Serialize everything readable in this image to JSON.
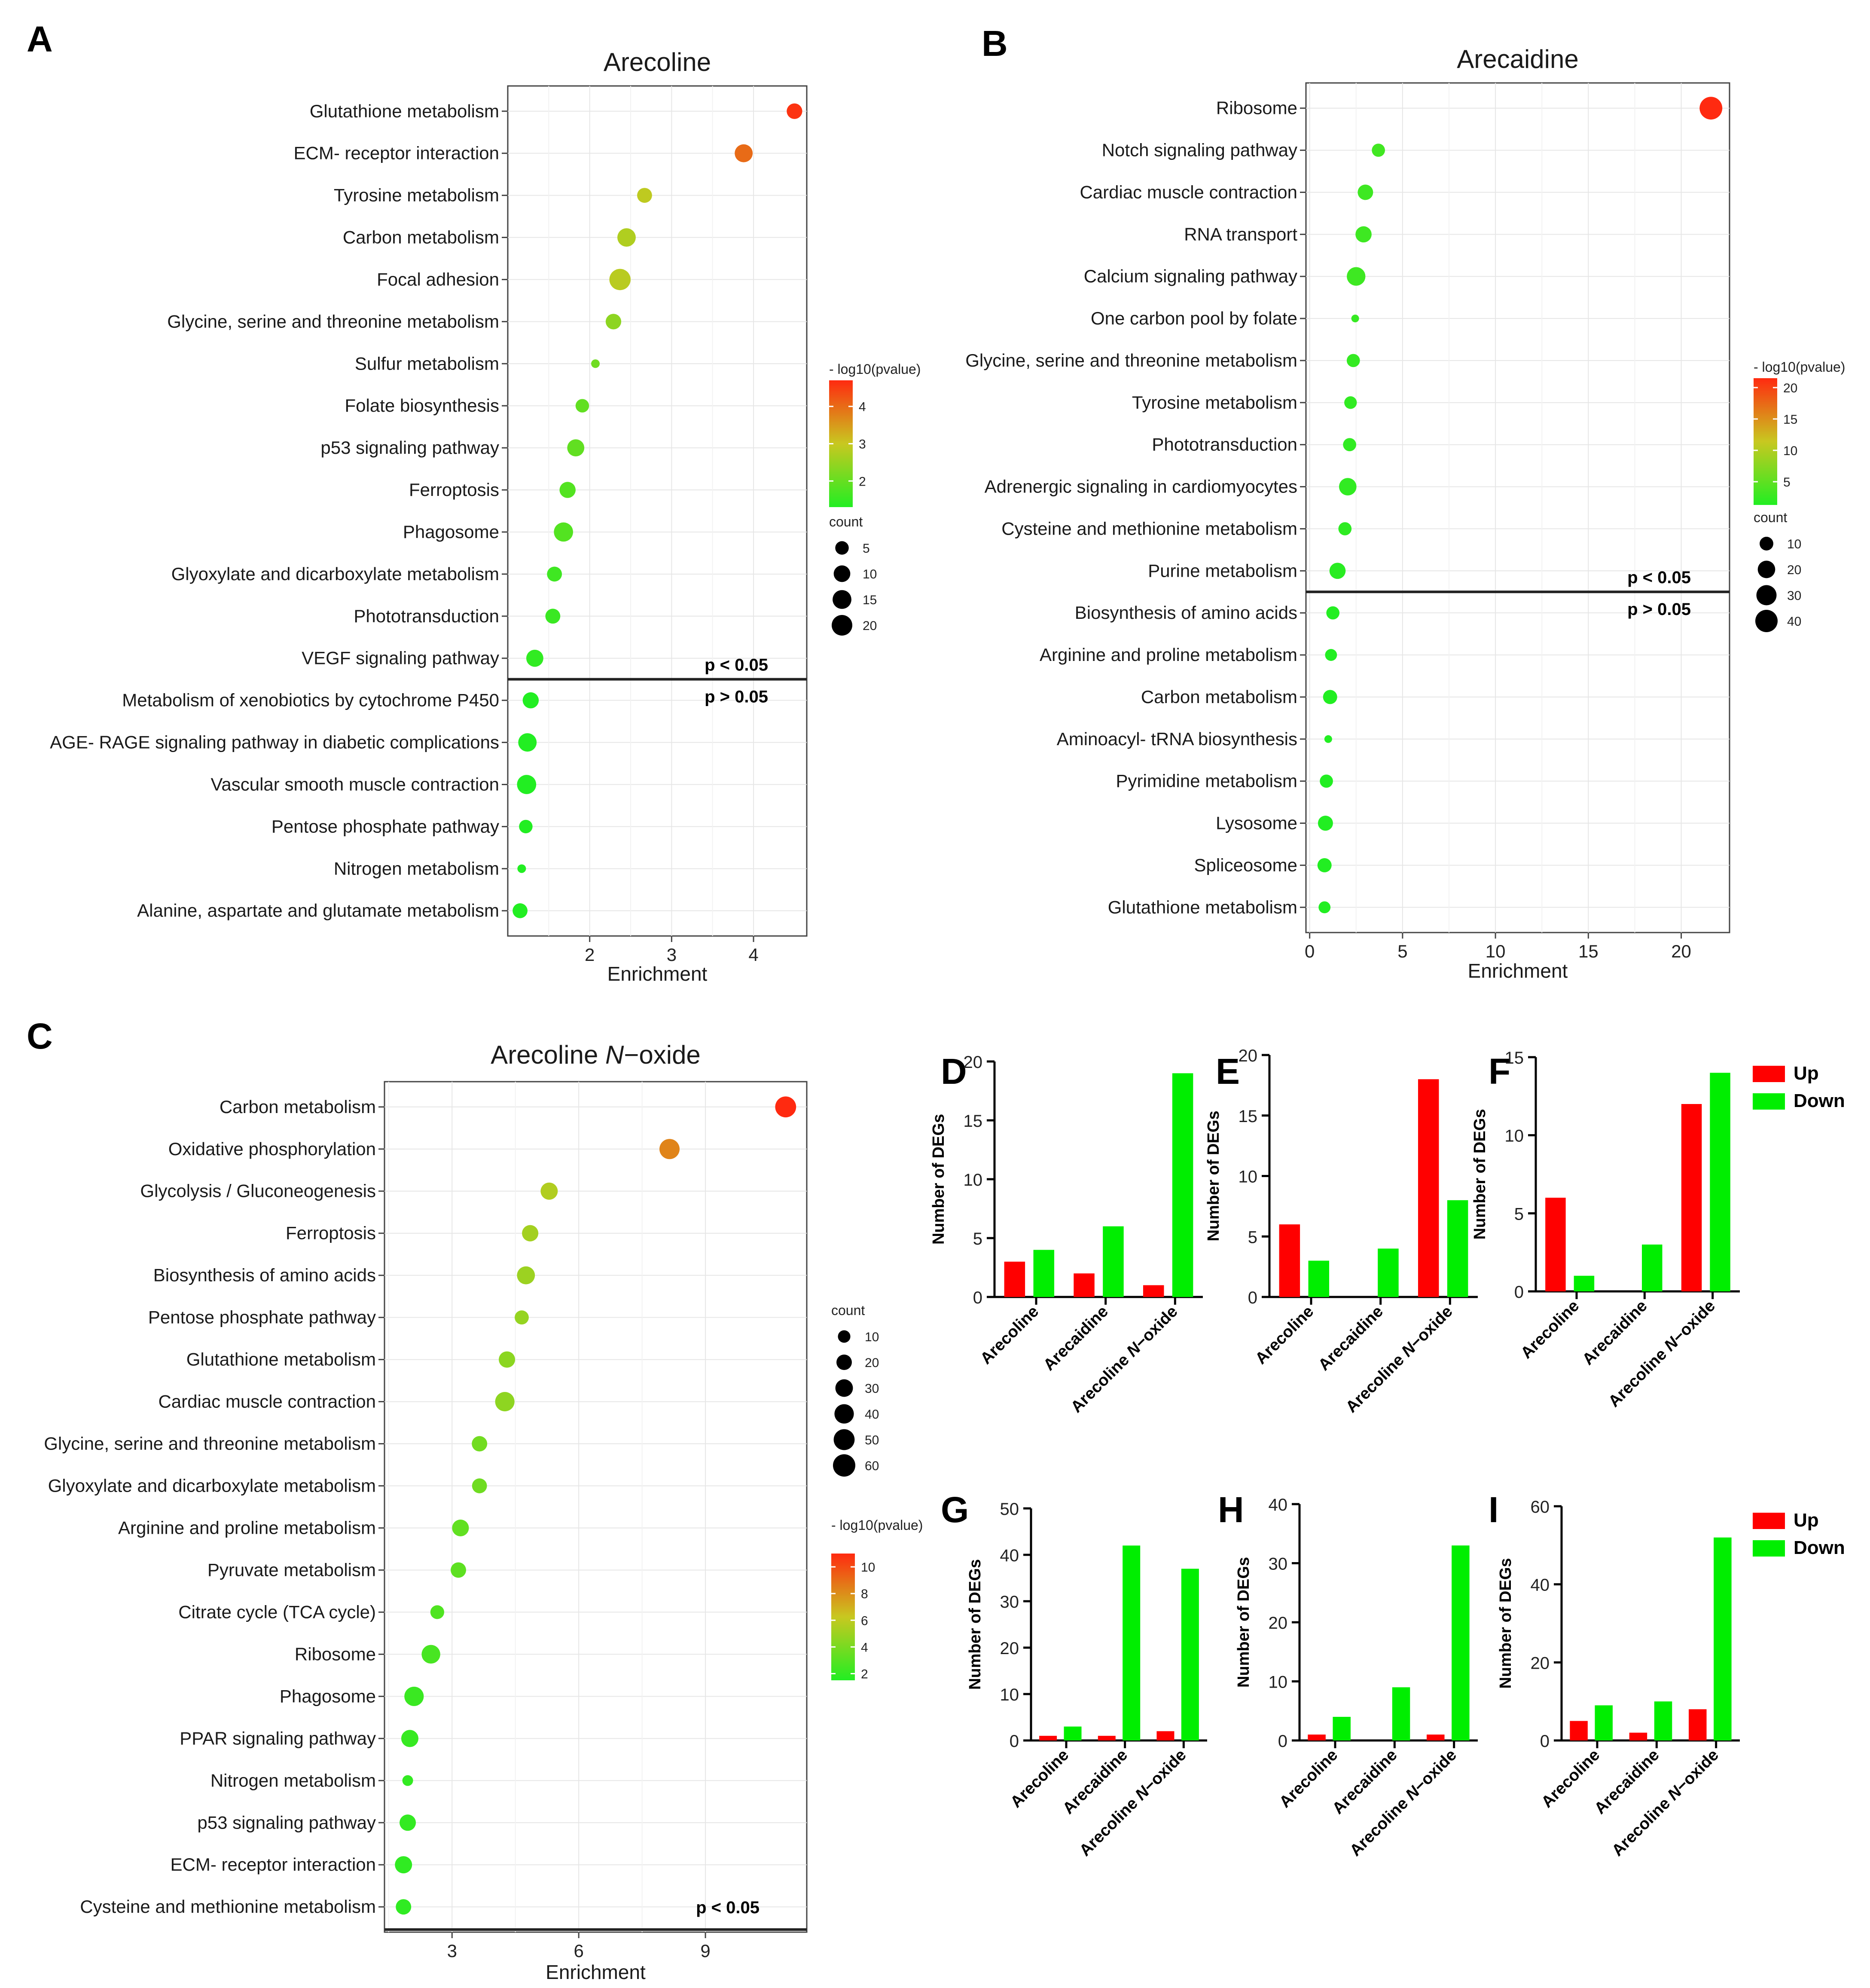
{
  "colors": {
    "low": "#22ee22",
    "mid": "#c8c820",
    "high": "#ff2a10",
    "up": "#ff0000",
    "down": "#00ee00"
  },
  "threshold_labels": {
    "below": "p < 0.05",
    "above": "p > 0.05"
  },
  "bar_legend": {
    "up": "Up",
    "down": "Down"
  },
  "chart_data": [
    {
      "panel": "A",
      "type": "scatter",
      "title": "Arecoline",
      "xlabel": "Enrichment",
      "xlim": [
        1.0,
        4.65
      ],
      "xticks": [
        2,
        3,
        4
      ],
      "size_legend_title": "count",
      "size_legend_values": [
        5,
        10,
        15,
        20
      ],
      "color_legend_title": "- log10(pvalue)",
      "color_ticks": [
        2,
        3,
        4
      ],
      "color_range": [
        1.3,
        4.7
      ],
      "threshold_after": 14,
      "points": [
        {
          "term": "Glutathione metabolism",
          "x": 4.5,
          "count": 8,
          "p": 4.6
        },
        {
          "term": "ECM- receptor interaction",
          "x": 3.88,
          "count": 13,
          "p": 4.0
        },
        {
          "term": "Tyrosine metabolism",
          "x": 2.67,
          "count": 7,
          "p": 2.9
        },
        {
          "term": "Carbon metabolism",
          "x": 2.45,
          "count": 14,
          "p": 2.75
        },
        {
          "term": "Focal adhesion",
          "x": 2.37,
          "count": 22,
          "p": 2.85
        },
        {
          "term": "Glycine, serine and threonine metabolism",
          "x": 2.29,
          "count": 8,
          "p": 2.4
        },
        {
          "term": "Sulfur metabolism",
          "x": 2.07,
          "count": 2,
          "p": 2.1
        },
        {
          "term": "Folate biosynthesis",
          "x": 1.91,
          "count": 5,
          "p": 1.95
        },
        {
          "term": "p53 signaling pathway",
          "x": 1.83,
          "count": 11,
          "p": 1.95
        },
        {
          "term": "Ferroptosis",
          "x": 1.73,
          "count": 9,
          "p": 1.8
        },
        {
          "term": "Phagosome",
          "x": 1.68,
          "count": 16,
          "p": 1.8
        },
        {
          "term": "Glyoxylate and dicarboxylate metabolism",
          "x": 1.57,
          "count": 7,
          "p": 1.6
        },
        {
          "term": "Phototransduction",
          "x": 1.55,
          "count": 7,
          "p": 1.55
        },
        {
          "term": "VEGF signaling pathway",
          "x": 1.33,
          "count": 11,
          "p": 1.45
        },
        {
          "term": "Metabolism of xenobiotics by cytochrome P450",
          "x": 1.28,
          "count": 9,
          "p": 1.3
        },
        {
          "term": "AGE- RAGE signaling pathway in diabetic complications",
          "x": 1.24,
          "count": 14,
          "p": 1.25
        },
        {
          "term": "Vascular smooth muscle contraction",
          "x": 1.23,
          "count": 16,
          "p": 1.25
        },
        {
          "term": "Pentose phosphate pathway",
          "x": 1.22,
          "count": 5,
          "p": 1.2
        },
        {
          "term": "Nitrogen metabolism",
          "x": 1.17,
          "count": 2,
          "p": 1.15
        },
        {
          "term": "Alanine, aspartate and glutamate metabolism",
          "x": 1.15,
          "count": 7,
          "p": 1.15
        }
      ]
    },
    {
      "panel": "B",
      "type": "scatter",
      "title": "Arecaidine",
      "xlabel": "Enrichment",
      "xlim": [
        -0.2,
        22.6
      ],
      "xticks": [
        0,
        5,
        10,
        15,
        20
      ],
      "size_legend_title": "count",
      "size_legend_values": [
        10,
        20,
        30,
        40
      ],
      "color_legend_title": "- log10(pvalue)",
      "color_ticks": [
        5,
        10,
        15,
        20
      ],
      "color_range": [
        1.3,
        21.5
      ],
      "threshold_after": 12,
      "points": [
        {
          "term": "Ribosome",
          "x": 21.6,
          "count": 42,
          "p": 21.5
        },
        {
          "term": "Notch signaling pathway",
          "x": 3.7,
          "count": 9,
          "p": 3.2
        },
        {
          "term": "Cardiac muscle contraction",
          "x": 3.0,
          "count": 14,
          "p": 3.0
        },
        {
          "term": "RNA transport",
          "x": 2.9,
          "count": 16,
          "p": 3.0
        },
        {
          "term": "Calcium signaling pathway",
          "x": 2.5,
          "count": 24,
          "p": 3.0
        },
        {
          "term": "One carbon pool by folate",
          "x": 2.45,
          "count": 3,
          "p": 2.5
        },
        {
          "term": "Glycine, serine and threonine metabolism",
          "x": 2.35,
          "count": 9,
          "p": 2.4
        },
        {
          "term": "Tyrosine metabolism",
          "x": 2.2,
          "count": 8,
          "p": 2.2
        },
        {
          "term": "Phototransduction",
          "x": 2.15,
          "count": 9,
          "p": 2.2
        },
        {
          "term": "Adrenergic signaling in cardiomyocytes",
          "x": 2.05,
          "count": 20,
          "p": 2.2
        },
        {
          "term": "Cysteine and methionine metabolism",
          "x": 1.9,
          "count": 9,
          "p": 2.0
        },
        {
          "term": "Purine metabolism",
          "x": 1.5,
          "count": 16,
          "p": 1.7
        },
        {
          "term": "Biosynthesis of amino acids",
          "x": 1.25,
          "count": 9,
          "p": 1.4
        },
        {
          "term": "Arginine and proline metabolism",
          "x": 1.15,
          "count": 7,
          "p": 1.3
        },
        {
          "term": "Carbon metabolism",
          "x": 1.1,
          "count": 11,
          "p": 1.3
        },
        {
          "term": "Aminoacyl- tRNA biosynthesis",
          "x": 1.0,
          "count": 3,
          "p": 1.2
        },
        {
          "term": "Pyrimidine metabolism",
          "x": 0.9,
          "count": 9,
          "p": 1.1
        },
        {
          "term": "Lysosome",
          "x": 0.85,
          "count": 13,
          "p": 1.1
        },
        {
          "term": "Spliceosome",
          "x": 0.8,
          "count": 11,
          "p": 1.1
        },
        {
          "term": "Glutathione metabolism",
          "x": 0.8,
          "count": 7,
          "p": 1.1
        }
      ]
    },
    {
      "panel": "C",
      "type": "scatter",
      "title": "Arecoline",
      "title_italic": "N",
      "title_suffix": "−oxide",
      "xlabel": "Enrichment",
      "xlim": [
        1.4,
        11.4
      ],
      "xticks": [
        3,
        6,
        9
      ],
      "size_legend_title": "count",
      "size_legend_values": [
        10,
        20,
        30,
        40,
        50,
        60
      ],
      "color_legend_title": "- log10(pvalue)",
      "color_ticks": [
        2,
        4,
        6,
        8,
        10
      ],
      "color_range": [
        1.5,
        11
      ],
      "threshold_after": 20,
      "points": [
        {
          "term": "Carbon metabolism",
          "x": 10.9,
          "count": 50,
          "p": 11.0
        },
        {
          "term": "Oxidative phosphorylation",
          "x": 8.15,
          "count": 45,
          "p": 8.3
        },
        {
          "term": "Glycolysis / Gluconeogenesis",
          "x": 5.3,
          "count": 28,
          "p": 5.6
        },
        {
          "term": "Ferroptosis",
          "x": 4.85,
          "count": 24,
          "p": 5.2
        },
        {
          "term": "Biosynthesis of amino acids",
          "x": 4.75,
          "count": 32,
          "p": 5.0
        },
        {
          "term": "Pentose phosphate pathway",
          "x": 4.65,
          "count": 15,
          "p": 4.8
        },
        {
          "term": "Glutathione metabolism",
          "x": 4.3,
          "count": 24,
          "p": 4.5
        },
        {
          "term": "Cardiac muscle contraction",
          "x": 4.25,
          "count": 40,
          "p": 4.6
        },
        {
          "term": "Glycine, serine and threonine metabolism",
          "x": 3.65,
          "count": 20,
          "p": 3.8
        },
        {
          "term": "Glyoxylate and dicarboxylate metabolism",
          "x": 3.65,
          "count": 18,
          "p": 3.7
        },
        {
          "term": "Arginine and proline metabolism",
          "x": 3.2,
          "count": 26,
          "p": 3.3
        },
        {
          "term": "Pyruvate metabolism",
          "x": 3.15,
          "count": 20,
          "p": 3.2
        },
        {
          "term": "Citrate cycle (TCA cycle)",
          "x": 2.65,
          "count": 14,
          "p": 2.8
        },
        {
          "term": "Ribosome",
          "x": 2.5,
          "count": 36,
          "p": 2.6
        },
        {
          "term": "Phagosome",
          "x": 2.1,
          "count": 40,
          "p": 2.2
        },
        {
          "term": "PPAR signaling pathway",
          "x": 2.0,
          "count": 28,
          "p": 2.1
        },
        {
          "term": "Nitrogen metabolism",
          "x": 1.95,
          "count": 6,
          "p": 2.0
        },
        {
          "term": "p53 signaling pathway",
          "x": 1.95,
          "count": 24,
          "p": 2.0
        },
        {
          "term": "ECM- receptor interaction",
          "x": 1.85,
          "count": 28,
          "p": 1.9
        },
        {
          "term": "Cysteine and methionine metabolism",
          "x": 1.85,
          "count": 20,
          "p": 1.9
        }
      ]
    },
    {
      "panel": "D",
      "type": "bar",
      "ylabel": "Number of DEGs",
      "ylim": [
        0,
        20
      ],
      "yticks": [
        0,
        5,
        10,
        15,
        20
      ],
      "categories": [
        "Arecoline",
        "Arecaidine",
        "Arecoline N−oxide"
      ],
      "series": [
        {
          "name": "Up",
          "values": [
            3,
            2,
            1
          ]
        },
        {
          "name": "Down",
          "values": [
            4,
            6,
            19
          ]
        }
      ]
    },
    {
      "panel": "E",
      "type": "bar",
      "ylabel": "Number of DEGs",
      "ylim": [
        0,
        20
      ],
      "yticks": [
        0,
        5,
        10,
        15,
        20
      ],
      "categories": [
        "Arecoline",
        "Arecaidine",
        "Arecoline N−oxide"
      ],
      "series": [
        {
          "name": "Up",
          "values": [
            6,
            0,
            18
          ]
        },
        {
          "name": "Down",
          "values": [
            3,
            4,
            8
          ]
        }
      ]
    },
    {
      "panel": "F",
      "type": "bar",
      "ylabel": "Number of DEGs",
      "ylim": [
        0,
        15
      ],
      "yticks": [
        0,
        5,
        10,
        15
      ],
      "categories": [
        "Arecoline",
        "Arecaidine",
        "Arecoline N−oxide"
      ],
      "series": [
        {
          "name": "Up",
          "values": [
            6,
            0,
            12
          ]
        },
        {
          "name": "Down",
          "values": [
            1,
            3,
            14
          ]
        }
      ]
    },
    {
      "panel": "G",
      "type": "bar",
      "ylabel": "Number of DEGs",
      "ylim": [
        0,
        50
      ],
      "yticks": [
        0,
        10,
        20,
        30,
        40,
        50
      ],
      "categories": [
        "Arecoline",
        "Arecaidine",
        "Arecoline N−oxide"
      ],
      "series": [
        {
          "name": "Up",
          "values": [
            1,
            1,
            2
          ]
        },
        {
          "name": "Down",
          "values": [
            3,
            42,
            37
          ]
        }
      ]
    },
    {
      "panel": "H",
      "type": "bar",
      "ylabel": "Number of DEGs",
      "ylim": [
        0,
        40
      ],
      "yticks": [
        0,
        10,
        20,
        30,
        40
      ],
      "categories": [
        "Arecoline",
        "Arecaidine",
        "Arecoline N−oxide"
      ],
      "series": [
        {
          "name": "Up",
          "values": [
            1,
            0,
            1
          ]
        },
        {
          "name": "Down",
          "values": [
            4,
            9,
            33
          ]
        }
      ]
    },
    {
      "panel": "I",
      "type": "bar",
      "ylabel": "Number of DEGs",
      "ylim": [
        0,
        60
      ],
      "yticks": [
        0,
        20,
        40,
        60
      ],
      "categories": [
        "Arecoline",
        "Arecaidine",
        "Arecoline N−oxide"
      ],
      "series": [
        {
          "name": "Up",
          "values": [
            5,
            2,
            8
          ]
        },
        {
          "name": "Down",
          "values": [
            9,
            10,
            52
          ]
        }
      ]
    }
  ]
}
